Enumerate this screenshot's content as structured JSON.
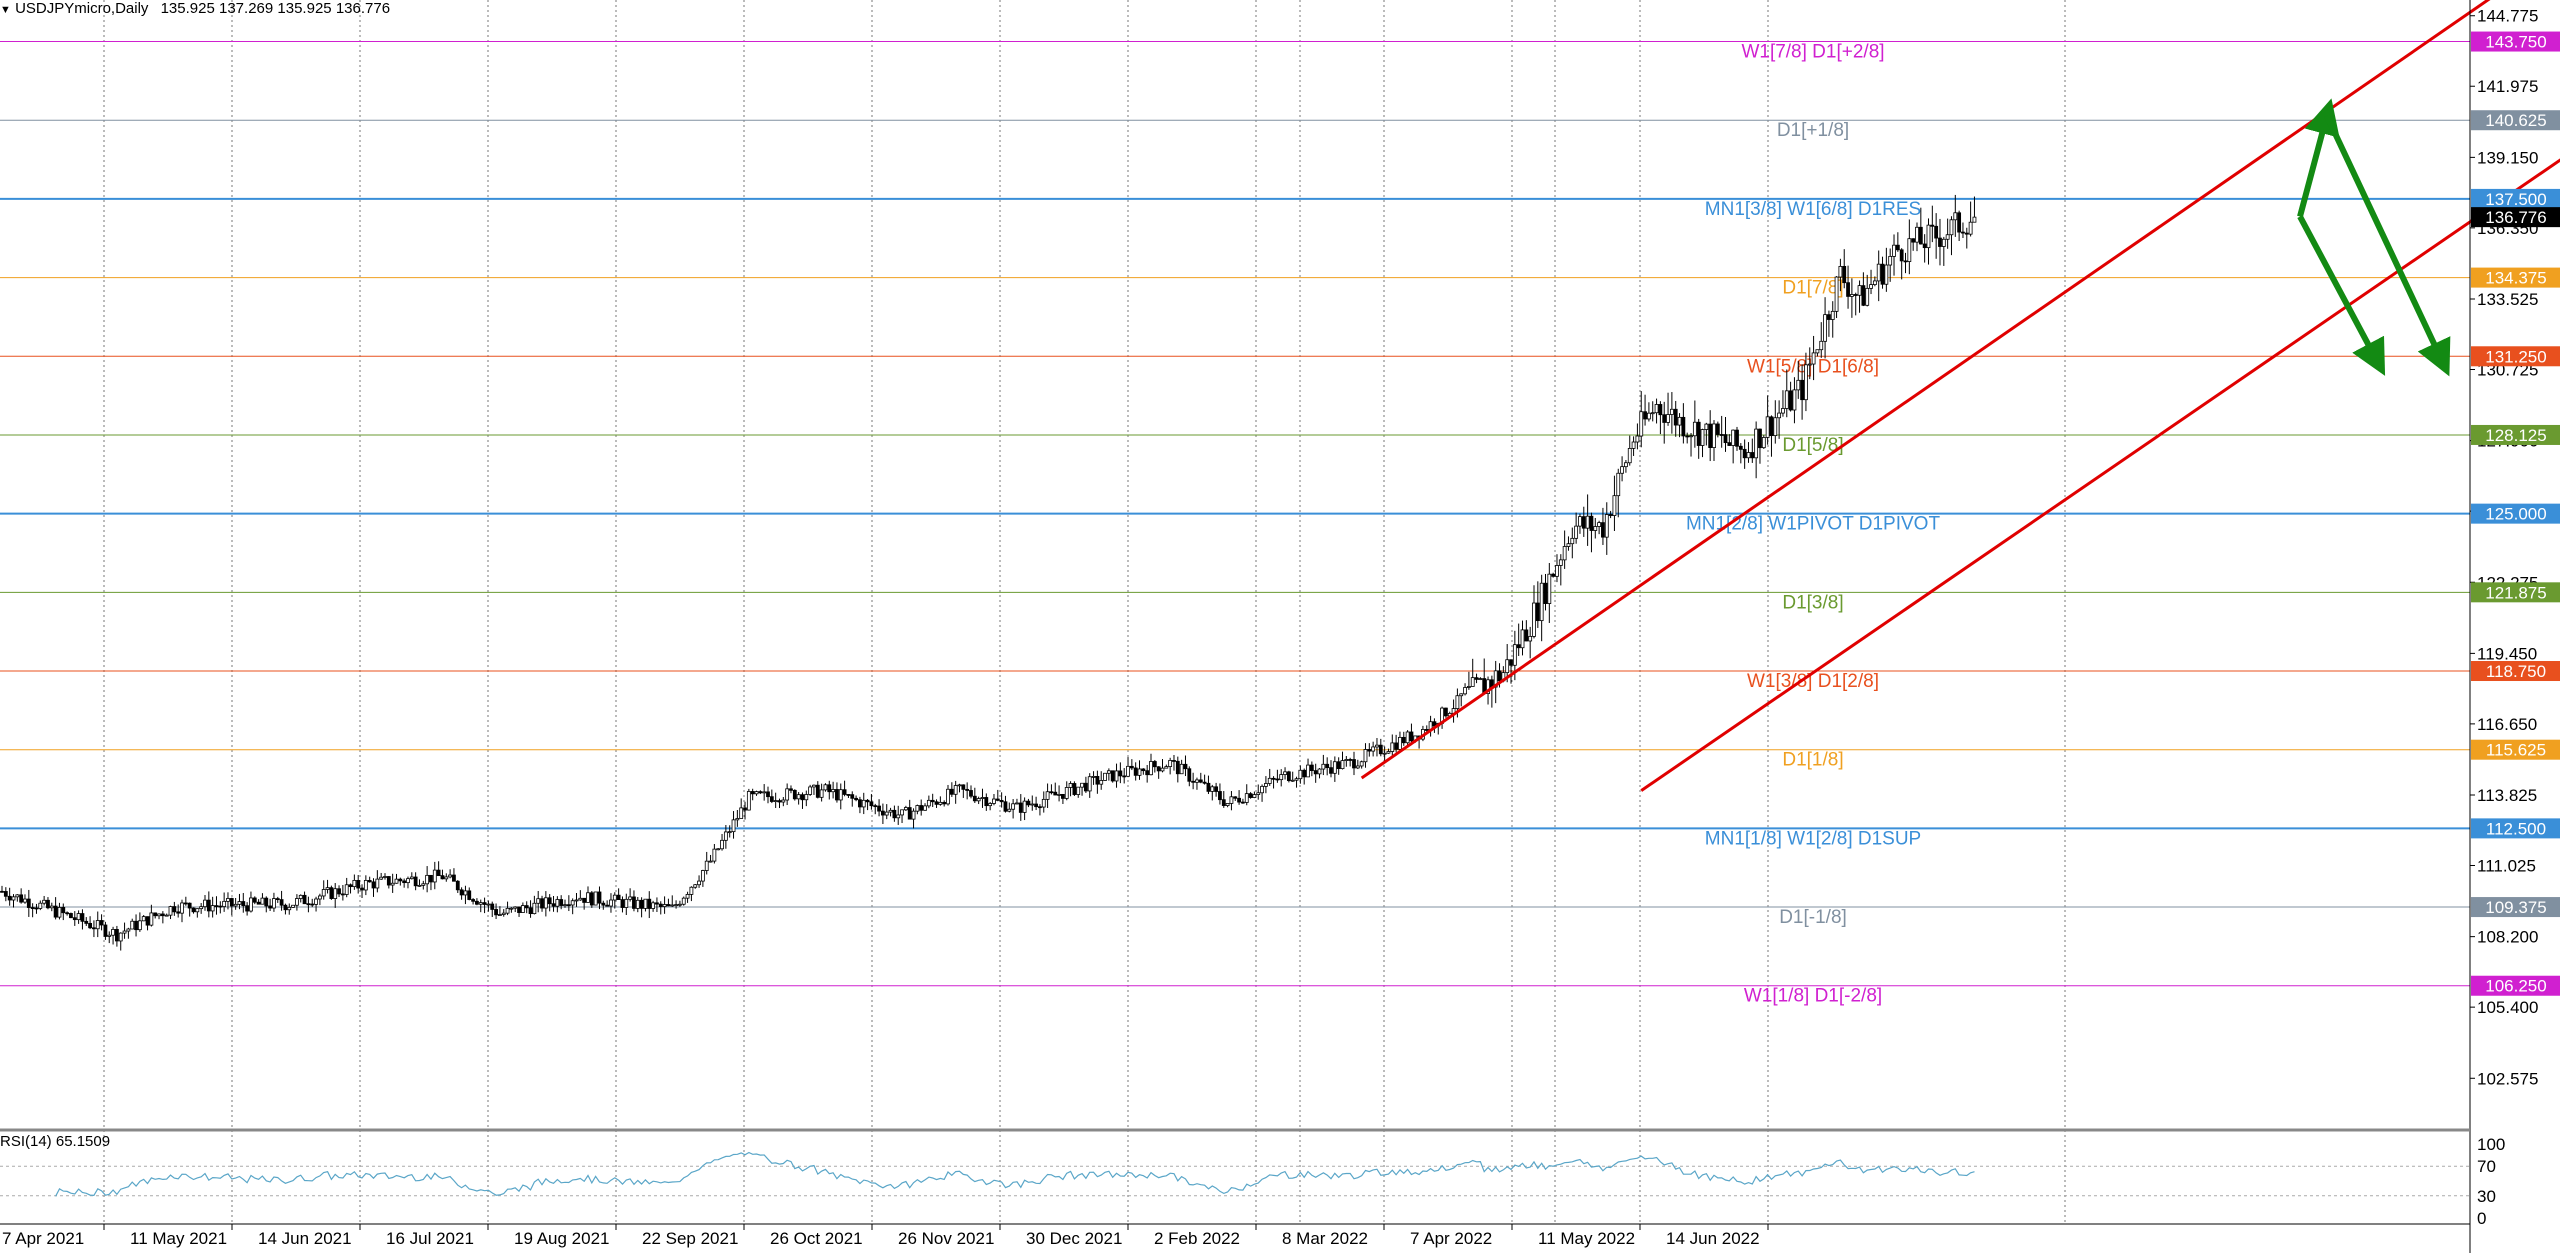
{
  "header": {
    "caret": "▼",
    "symbol": "USDJPYmicro,Daily",
    "open": "135.925",
    "high": "137.269",
    "low": "135.925",
    "close": "136.776"
  },
  "rsi": {
    "label": "RSI(14) 65.1509",
    "scale": [
      "100",
      "70",
      "30",
      "0"
    ],
    "levels": [
      70,
      30
    ]
  },
  "colors": {
    "candle_up": "#ffffff",
    "candle_down": "#000000",
    "channel": "#e00000",
    "arrow": "#138a13",
    "rsi_line": "#5aa6c8",
    "current_price_bg": "#000000"
  },
  "chart_data": {
    "type": "candlestick",
    "symbol": "USDJPYmicro",
    "timeframe": "Daily",
    "x_labels": [
      "7 Apr 2021",
      "11 May 2021",
      "14 Jun 2021",
      "16 Jul 2021",
      "19 Aug 2021",
      "22 Sep 2021",
      "26 Oct 2021",
      "26 Nov 2021",
      "30 Dec 2021",
      "2 Feb 2022",
      "8 Mar 2022",
      "7 Apr 2022",
      "11 May 2022",
      "14 Jun 2022"
    ],
    "y_ticks": [
      "144.775",
      "141.975",
      "139.150",
      "136.350",
      "133.525",
      "130.725",
      "127.900",
      "125.100",
      "122.275",
      "119.450",
      "116.650",
      "113.825",
      "111.025",
      "108.200",
      "105.400",
      "102.575"
    ],
    "y_range": [
      100.6,
      145.4
    ],
    "current_price": "136.776",
    "price_path": [
      [
        0,
        110.0
      ],
      [
        30,
        108.3
      ],
      [
        45,
        109.4
      ],
      [
        75,
        109.5
      ],
      [
        95,
        110.3
      ],
      [
        115,
        110.6
      ],
      [
        130,
        109.1
      ],
      [
        150,
        109.8
      ],
      [
        175,
        109.3
      ],
      [
        185,
        111.2
      ],
      [
        195,
        113.7
      ],
      [
        215,
        114.0
      ],
      [
        235,
        113.0
      ],
      [
        250,
        114.0
      ],
      [
        265,
        113.3
      ],
      [
        290,
        114.6
      ],
      [
        305,
        115.1
      ],
      [
        320,
        113.5
      ],
      [
        335,
        114.6
      ],
      [
        352,
        115.1
      ],
      [
        370,
        116.3
      ],
      [
        380,
        117.5
      ],
      [
        392,
        118.7
      ],
      [
        400,
        121.0
      ],
      [
        410,
        124.5
      ],
      [
        418,
        124.5
      ],
      [
        426,
        128.0
      ],
      [
        432,
        129.3
      ],
      [
        440,
        128.5
      ],
      [
        455,
        127.5
      ],
      [
        470,
        130.0
      ],
      [
        480,
        134.5
      ],
      [
        485,
        133.5
      ],
      [
        495,
        135.5
      ],
      [
        505,
        136.0
      ],
      [
        515,
        136.8
      ]
    ],
    "murrey_levels": [
      {
        "price": 143.75,
        "label": "W1[7/8] D1[+2/8]",
        "price_label": "143.750",
        "color": "#d020d0"
      },
      {
        "price": 140.625,
        "label": "D1[+1/8]",
        "price_label": "140.625",
        "color": "#8090a0"
      },
      {
        "price": 137.5,
        "label": "MN1[3/8] W1[6/8] D1RES",
        "price_label": "137.500",
        "color": "#3a8fd8"
      },
      {
        "price": 134.375,
        "label": "D1[7/8]",
        "price_label": "134.375",
        "color": "#f0a020"
      },
      {
        "price": 131.25,
        "label": "W1[5/8] D1[6/8]",
        "price_label": "131.250",
        "color": "#e8501e"
      },
      {
        "price": 128.125,
        "label": "D1[5/8]",
        "price_label": "128.125",
        "color": "#6a9a30"
      },
      {
        "price": 125.0,
        "label": "MN1[2/8] W1PIVOT D1PIVOT",
        "price_label": "125.000",
        "color": "#3a8fd8"
      },
      {
        "price": 121.875,
        "label": "D1[3/8]",
        "price_label": "121.875",
        "color": "#6a9a30"
      },
      {
        "price": 118.75,
        "label": "W1[3/8] D1[2/8]",
        "price_label": "118.750",
        "color": "#e8501e"
      },
      {
        "price": 115.625,
        "label": "D1[1/8]",
        "price_label": "115.625",
        "color": "#f0a020"
      },
      {
        "price": 112.5,
        "label": "MN1[1/8] W1[2/8] D1SUP",
        "price_label": "112.500",
        "color": "#3a8fd8"
      },
      {
        "price": 109.375,
        "label": "D1[-1/8]",
        "price_label": "109.375",
        "color": "#8090a0"
      },
      {
        "price": 106.25,
        "label": "W1[1/8] D1[-2/8]",
        "price_label": "106.250",
        "color": "#d020d0"
      }
    ],
    "channel": {
      "upper": [
        [
          355,
          114.5
        ],
        [
          650,
          145.5
        ]
      ],
      "lower": [
        [
          428,
          114.0
        ],
        [
          725,
          145.0
        ]
      ]
    },
    "arrows": [
      {
        "from": [
          600,
          136.8
        ],
        "peak": [
          607,
          140.8
        ],
        "to": [
          620,
          131.1
        ]
      },
      {
        "from": [
          607,
          140.8
        ],
        "to": [
          637,
          131.1
        ]
      }
    ],
    "rsi_last": 65.1509
  }
}
